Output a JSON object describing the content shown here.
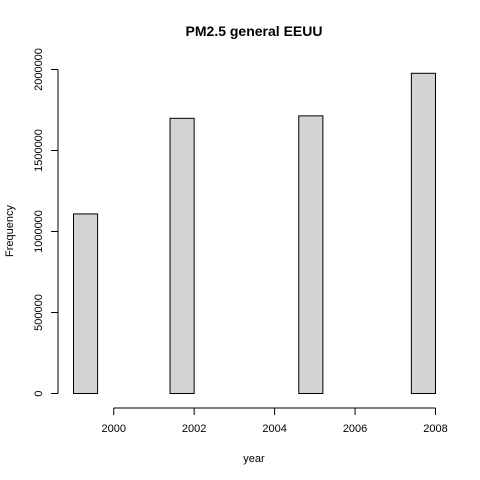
{
  "chart_data": {
    "type": "bar",
    "title": "PM2.5 general EEUU",
    "xlabel": "year",
    "ylabel": "Frequency",
    "bin_width": 0.6,
    "bins": [
      {
        "start": 1999.0,
        "end": 1999.6,
        "value": 1108469
      },
      {
        "start": 2001.4,
        "end": 2002.0,
        "value": 1698677
      },
      {
        "start": 2004.6,
        "end": 2005.2,
        "value": 1713850
      },
      {
        "start": 2007.4,
        "end": 2008.0,
        "value": 1976655
      }
    ],
    "x_ticks": [
      2000,
      2002,
      2004,
      2006,
      2008
    ],
    "x_tick_labels": [
      "2000",
      "2002",
      "2004",
      "2006",
      "2008"
    ],
    "xlim": [
      1999,
      2008
    ],
    "y_ticks": [
      0,
      500000,
      1000000,
      1500000,
      2000000
    ],
    "y_tick_labels": [
      "0",
      "500000",
      "1000000",
      "1500000",
      "2000000"
    ],
    "ylim": [
      0,
      2000000
    ],
    "grid": false,
    "legend": "none",
    "bar_fill": "#d3d3d3",
    "bar_stroke": "#000000"
  }
}
